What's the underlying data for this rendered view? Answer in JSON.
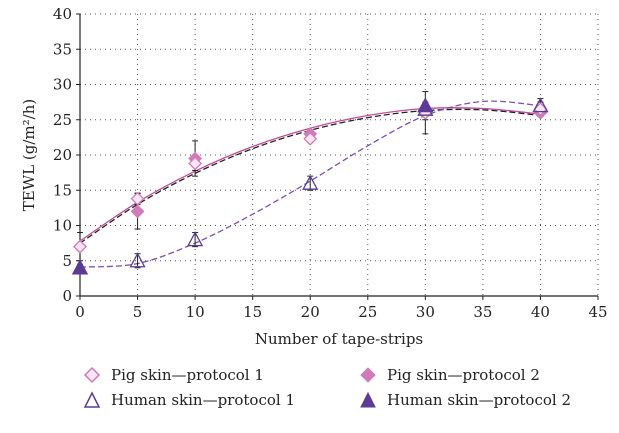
{
  "chart_data": {
    "type": "scatter",
    "xlabel": "Number of tape-strips",
    "ylabel": "TEWL (g/m²/h)",
    "xlim": [
      0,
      45
    ],
    "ylim": [
      0,
      40
    ],
    "xticks": [
      0,
      5,
      10,
      15,
      20,
      25,
      30,
      35,
      40,
      45
    ],
    "yticks": [
      0,
      5,
      10,
      15,
      20,
      25,
      30,
      35,
      40
    ],
    "grid": "dotted",
    "legend_position": "bottom",
    "series": [
      {
        "name": "Pig skin—protocol 1",
        "marker": "diamond-open",
        "color": "#d07ab8",
        "x": [
          0,
          5,
          10,
          20,
          30,
          40
        ],
        "y": [
          7,
          13.8,
          18.8,
          22.3,
          26,
          26.5
        ],
        "err": [
          0,
          0.8,
          1.0,
          0.5,
          1.0,
          1.0
        ],
        "fit": "solid",
        "fit_color": "#c04c98"
      },
      {
        "name": "Pig skin—protocol 2",
        "marker": "diamond-filled",
        "color": "#d07ab8",
        "x": [
          0,
          5,
          10,
          20,
          30,
          40
        ],
        "y": [
          7,
          12,
          19.5,
          23,
          26,
          26
        ],
        "err": [
          2,
          2.5,
          2.5,
          0.5,
          3.0,
          0.5
        ],
        "fit": "dashed",
        "fit_color": "#222222"
      },
      {
        "name": "Human skin—protocol 1",
        "marker": "triangle-open",
        "color": "#5b3b96",
        "x": [
          0,
          5,
          10,
          20,
          30,
          40
        ],
        "y": [
          4,
          5,
          8,
          16,
          26.5,
          27
        ],
        "err": [
          0.5,
          1.0,
          1.0,
          1.0,
          1.0,
          1.0
        ],
        "fit": "dashed",
        "fit_color": "#7c4fb8"
      },
      {
        "name": "Human skin—protocol 2",
        "marker": "triangle-filled",
        "color": "#5b3b96",
        "x": [
          0,
          30
        ],
        "y": [
          4,
          27
        ],
        "err": [
          0,
          0
        ],
        "fit": null,
        "fit_color": null
      }
    ]
  },
  "legend": {
    "item1": "Pig skin—protocol 1",
    "item2": "Pig skin—protocol 2",
    "item3": "Human skin—protocol 1",
    "item4": "Human skin—protocol 2"
  }
}
